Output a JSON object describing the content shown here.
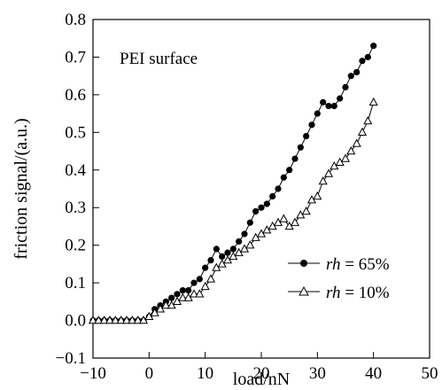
{
  "chart_data": {
    "type": "line",
    "title": "",
    "annotation": "PEI surface",
    "xlabel": "load/nN",
    "ylabel": "friction signal/(a.u.)",
    "xlim": [
      -10,
      50
    ],
    "ylim": [
      -0.1,
      0.8
    ],
    "xticks": [
      -10,
      0,
      10,
      20,
      30,
      40,
      50
    ],
    "yticks": [
      -0.1,
      0.0,
      0.1,
      0.2,
      0.3,
      0.4,
      0.5,
      0.6,
      0.7,
      0.8
    ],
    "xtick_labels": [
      "−10",
      "0",
      "10",
      "20",
      "30",
      "40",
      "50"
    ],
    "ytick_labels": [
      "−0.1",
      "0.0",
      "0.1",
      "0.2",
      "0.3",
      "0.4",
      "0.5",
      "0.6",
      "0.7",
      "0.8"
    ],
    "grid": false,
    "legend_position": "bottom-right",
    "series": [
      {
        "name_var": "rh",
        "name_value": " = 65%",
        "marker": "filled-circle",
        "color": "#000000",
        "x": [
          -10,
          -9,
          -8,
          -7,
          -6,
          -5,
          -4,
          -3,
          -2,
          -1,
          0,
          1,
          2,
          3,
          4,
          5,
          6,
          7,
          8,
          9,
          10,
          11,
          12,
          13,
          14,
          15,
          16,
          17,
          18,
          19,
          20,
          21,
          22,
          23,
          24,
          25,
          26,
          27,
          28,
          29,
          30,
          31,
          32,
          33,
          34,
          35,
          36,
          37,
          38,
          39,
          40
        ],
        "y": [
          0.0,
          0.0,
          0.0,
          0.0,
          0.0,
          0.0,
          0.0,
          0.0,
          0.0,
          0.0,
          0.01,
          0.03,
          0.04,
          0.05,
          0.06,
          0.07,
          0.08,
          0.08,
          0.1,
          0.11,
          0.14,
          0.16,
          0.19,
          0.17,
          0.18,
          0.19,
          0.21,
          0.23,
          0.26,
          0.29,
          0.3,
          0.31,
          0.33,
          0.35,
          0.38,
          0.4,
          0.43,
          0.46,
          0.49,
          0.52,
          0.55,
          0.58,
          0.57,
          0.57,
          0.59,
          0.62,
          0.65,
          0.66,
          0.69,
          0.7,
          0.73
        ]
      },
      {
        "name_var": "rh",
        "name_value": " = 10%",
        "marker": "open-triangle",
        "color": "#000000",
        "x": [
          -10,
          -9,
          -8,
          -7,
          -6,
          -5,
          -4,
          -3,
          -2,
          -1,
          0,
          1,
          2,
          3,
          4,
          5,
          6,
          7,
          8,
          9,
          10,
          11,
          12,
          13,
          14,
          15,
          16,
          17,
          18,
          19,
          20,
          21,
          22,
          23,
          24,
          25,
          26,
          27,
          28,
          29,
          30,
          31,
          32,
          33,
          34,
          35,
          36,
          37,
          38,
          39,
          40
        ],
        "y": [
          0.0,
          0.0,
          0.0,
          0.0,
          0.0,
          0.0,
          0.0,
          0.0,
          0.0,
          0.0,
          0.01,
          0.02,
          0.03,
          0.04,
          0.04,
          0.05,
          0.06,
          0.06,
          0.07,
          0.07,
          0.09,
          0.11,
          0.14,
          0.15,
          0.16,
          0.17,
          0.18,
          0.19,
          0.2,
          0.22,
          0.23,
          0.24,
          0.25,
          0.26,
          0.27,
          0.25,
          0.26,
          0.28,
          0.29,
          0.32,
          0.33,
          0.37,
          0.39,
          0.41,
          0.42,
          0.43,
          0.45,
          0.47,
          0.5,
          0.53,
          0.58
        ]
      }
    ]
  }
}
